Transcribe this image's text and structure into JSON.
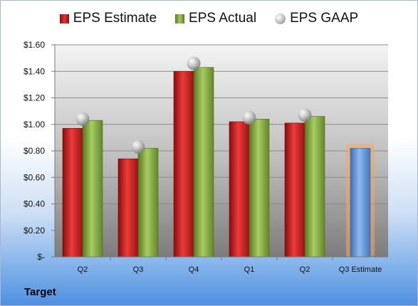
{
  "company": "Target",
  "legend": {
    "estimate": "EPS Estimate",
    "actual": "EPS Actual",
    "gaap": "EPS GAAP"
  },
  "colors": {
    "estimate": "#cc2020",
    "actual": "#8db84a",
    "gaap": "#b8b8b8",
    "forecast": "#6f9fd8",
    "forecast_glow": "#f5a860"
  },
  "chart_data": {
    "type": "bar",
    "categories": [
      "Q2",
      "Q3",
      "Q4",
      "Q1",
      "Q2",
      "Q3 Estimate"
    ],
    "series": [
      {
        "name": "EPS Estimate",
        "values": [
          0.97,
          0.74,
          1.4,
          1.02,
          1.01,
          null
        ]
      },
      {
        "name": "EPS Actual",
        "values": [
          1.03,
          0.82,
          1.43,
          1.04,
          1.06,
          null
        ]
      },
      {
        "name": "EPS GAAP",
        "values": [
          1.04,
          0.83,
          1.46,
          1.05,
          1.07,
          null
        ]
      }
    ],
    "forecast": {
      "category": "Q3 Estimate",
      "value": 0.82
    },
    "yticks": [
      "$-",
      "$0.20",
      "$0.40",
      "$0.60",
      "$0.80",
      "$1.00",
      "$1.20",
      "$1.40",
      "$1.60"
    ],
    "ylim": [
      0,
      1.6
    ],
    "grid": true,
    "legend_position": "top"
  }
}
